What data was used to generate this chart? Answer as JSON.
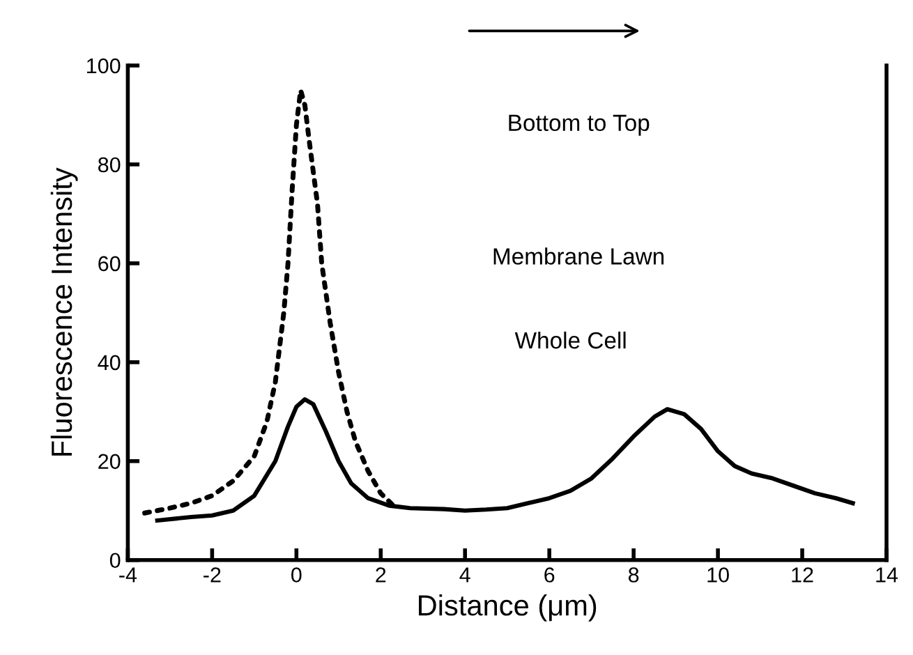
{
  "chart_data": {
    "type": "line",
    "xlabel": "Distance (μm)",
    "ylabel": "Fluorescence Intensity",
    "xlim": [
      -4,
      14
    ],
    "xticks": [
      -4,
      -2,
      0,
      2,
      4,
      6,
      8,
      10,
      12,
      14
    ],
    "ylim": [
      0,
      100
    ],
    "yticks": [
      0,
      20,
      40,
      60,
      80,
      100
    ],
    "grid": false,
    "legend": false,
    "annotations": [
      "Bottom to Top",
      "Membrane Lawn",
      "Whole Cell"
    ],
    "series": [
      {
        "color": "#000000",
        "line_style": "dotted",
        "x": [
          -3.6,
          -3,
          -2.5,
          -2,
          -1.5,
          -1,
          -0.7,
          -0.5,
          -0.3,
          -0.2,
          -0.1,
          0,
          0.1,
          0.2,
          0.3,
          0.5,
          0.6,
          0.8,
          1,
          1.2,
          1.4,
          1.7,
          2,
          2.3
        ],
        "values": [
          9.5,
          10.5,
          11.5,
          13,
          16,
          21,
          28,
          36,
          50,
          60,
          75,
          88,
          95,
          92,
          85,
          72,
          60,
          48,
          38,
          30,
          24,
          18,
          13.5,
          11
        ]
      },
      {
        "color": "#000000",
        "line_style": "solid",
        "x": [
          -3.3,
          -2.5,
          -2,
          -1.5,
          -1,
          -0.5,
          -0.2,
          0,
          0.2,
          0.4,
          0.7,
          1,
          1.3,
          1.7,
          2.2,
          2.7,
          3.5,
          4,
          4.5,
          5,
          5.5,
          6,
          6.5,
          7,
          7.5,
          8,
          8.5,
          8.8,
          9.2,
          9.6,
          10,
          10.4,
          10.8,
          11.3,
          11.8,
          12.3,
          12.8,
          13.2
        ],
        "values": [
          8,
          8.7,
          9,
          10,
          13,
          20,
          27,
          31,
          32.5,
          31.5,
          26,
          20,
          15.5,
          12.5,
          11,
          10.5,
          10.3,
          10,
          10.2,
          10.5,
          11.5,
          12.5,
          14,
          16.5,
          20.5,
          25,
          29,
          30.5,
          29.5,
          26.5,
          22,
          19,
          17.5,
          16.5,
          15,
          13.5,
          12.5,
          11.5
        ]
      }
    ]
  }
}
